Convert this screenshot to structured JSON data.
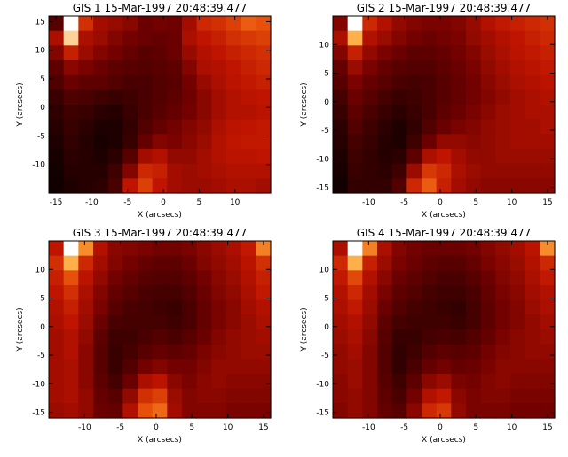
{
  "chart_data": [
    {
      "type": "heatmap",
      "title": "GIS 1 15-Mar-1997 20:48:39.477",
      "xlabel": "X (arcsecs)",
      "ylabel": "Y (arcsecs)",
      "xlim": [
        -16,
        15
      ],
      "ylim": [
        -15,
        16
      ],
      "xticks": [
        -15,
        -10,
        -5,
        0,
        5,
        10
      ],
      "yticks": [
        -10,
        -5,
        0,
        5,
        10,
        15
      ],
      "colormap": "red-temperature",
      "values": [
        [
          0.28,
          1.0,
          0.62,
          0.48,
          0.45,
          0.42,
          0.34,
          0.36,
          0.35,
          0.48,
          0.6,
          0.62,
          0.66,
          0.72,
          0.7
        ],
        [
          0.5,
          0.92,
          0.5,
          0.46,
          0.4,
          0.36,
          0.34,
          0.32,
          0.34,
          0.5,
          0.55,
          0.58,
          0.62,
          0.64,
          0.66
        ],
        [
          0.4,
          0.58,
          0.46,
          0.4,
          0.36,
          0.32,
          0.28,
          0.3,
          0.34,
          0.45,
          0.52,
          0.55,
          0.58,
          0.6,
          0.62
        ],
        [
          0.3,
          0.42,
          0.38,
          0.34,
          0.3,
          0.28,
          0.26,
          0.28,
          0.3,
          0.4,
          0.5,
          0.52,
          0.55,
          0.58,
          0.6
        ],
        [
          0.25,
          0.34,
          0.3,
          0.3,
          0.26,
          0.24,
          0.24,
          0.26,
          0.28,
          0.36,
          0.45,
          0.5,
          0.54,
          0.56,
          0.58
        ],
        [
          0.18,
          0.25,
          0.24,
          0.2,
          0.18,
          0.2,
          0.24,
          0.26,
          0.3,
          0.35,
          0.42,
          0.48,
          0.52,
          0.54,
          0.55
        ],
        [
          0.15,
          0.2,
          0.18,
          0.14,
          0.12,
          0.18,
          0.24,
          0.28,
          0.32,
          0.36,
          0.42,
          0.48,
          0.52,
          0.52,
          0.54
        ],
        [
          0.12,
          0.18,
          0.14,
          0.1,
          0.1,
          0.16,
          0.26,
          0.32,
          0.36,
          0.4,
          0.44,
          0.5,
          0.54,
          0.55,
          0.56
        ],
        [
          0.1,
          0.16,
          0.12,
          0.08,
          0.1,
          0.18,
          0.32,
          0.4,
          0.38,
          0.42,
          0.46,
          0.52,
          0.55,
          0.56,
          0.56
        ],
        [
          0.08,
          0.14,
          0.12,
          0.1,
          0.14,
          0.28,
          0.48,
          0.52,
          0.44,
          0.44,
          0.48,
          0.52,
          0.54,
          0.54,
          0.55
        ],
        [
          0.06,
          0.12,
          0.12,
          0.12,
          0.2,
          0.4,
          0.6,
          0.58,
          0.48,
          0.46,
          0.48,
          0.5,
          0.52,
          0.52,
          0.52
        ],
        [
          0.05,
          0.1,
          0.12,
          0.14,
          0.24,
          0.55,
          0.66,
          0.55,
          0.48,
          0.46,
          0.46,
          0.48,
          0.5,
          0.5,
          0.48
        ]
      ]
    },
    {
      "type": "heatmap",
      "title": "GIS 2 15-Mar-1997 20:48:39.477",
      "xlabel": "X (arcsecs)",
      "ylabel": "Y (arcsecs)",
      "xlim": [
        -15,
        16
      ],
      "ylim": [
        -16,
        15
      ],
      "xticks": [
        -10,
        -5,
        0,
        5,
        10,
        15
      ],
      "yticks": [
        -15,
        -10,
        -5,
        0,
        5,
        10
      ],
      "colormap": "red-temperature",
      "values": [
        [
          0.4,
          1.0,
          0.6,
          0.52,
          0.44,
          0.4,
          0.38,
          0.38,
          0.4,
          0.45,
          0.52,
          0.56,
          0.58,
          0.6,
          0.62
        ],
        [
          0.5,
          0.86,
          0.52,
          0.46,
          0.4,
          0.36,
          0.34,
          0.36,
          0.38,
          0.44,
          0.48,
          0.52,
          0.55,
          0.58,
          0.6
        ],
        [
          0.4,
          0.58,
          0.44,
          0.38,
          0.34,
          0.3,
          0.3,
          0.32,
          0.36,
          0.4,
          0.46,
          0.5,
          0.54,
          0.56,
          0.58
        ],
        [
          0.32,
          0.46,
          0.38,
          0.32,
          0.28,
          0.26,
          0.26,
          0.3,
          0.34,
          0.38,
          0.44,
          0.48,
          0.52,
          0.54,
          0.56
        ],
        [
          0.28,
          0.38,
          0.32,
          0.28,
          0.24,
          0.22,
          0.24,
          0.28,
          0.32,
          0.36,
          0.42,
          0.46,
          0.5,
          0.52,
          0.54
        ],
        [
          0.22,
          0.34,
          0.28,
          0.22,
          0.18,
          0.2,
          0.24,
          0.28,
          0.32,
          0.36,
          0.4,
          0.44,
          0.48,
          0.5,
          0.52
        ],
        [
          0.18,
          0.3,
          0.24,
          0.18,
          0.14,
          0.18,
          0.24,
          0.3,
          0.34,
          0.38,
          0.42,
          0.46,
          0.48,
          0.5,
          0.5
        ],
        [
          0.14,
          0.26,
          0.2,
          0.14,
          0.1,
          0.16,
          0.26,
          0.34,
          0.38,
          0.4,
          0.44,
          0.46,
          0.48,
          0.48,
          0.5
        ],
        [
          0.12,
          0.22,
          0.18,
          0.12,
          0.1,
          0.2,
          0.34,
          0.44,
          0.44,
          0.42,
          0.44,
          0.46,
          0.48,
          0.48,
          0.48
        ],
        [
          0.1,
          0.2,
          0.16,
          0.12,
          0.14,
          0.3,
          0.5,
          0.55,
          0.48,
          0.44,
          0.44,
          0.46,
          0.46,
          0.46,
          0.46
        ],
        [
          0.08,
          0.18,
          0.16,
          0.14,
          0.2,
          0.46,
          0.64,
          0.6,
          0.5,
          0.46,
          0.44,
          0.44,
          0.44,
          0.44,
          0.44
        ],
        [
          0.06,
          0.16,
          0.16,
          0.16,
          0.26,
          0.6,
          0.72,
          0.58,
          0.48,
          0.44,
          0.42,
          0.42,
          0.42,
          0.42,
          0.42
        ]
      ]
    },
    {
      "type": "heatmap",
      "title": "GIS 3 15-Mar-1997 20:48:39.477",
      "xlabel": "X (arcsecs)",
      "ylabel": "Y (arcsecs)",
      "xlim": [
        -15,
        16
      ],
      "ylim": [
        -16,
        15
      ],
      "xticks": [
        -10,
        -5,
        0,
        5,
        10,
        15
      ],
      "yticks": [
        -15,
        -10,
        -5,
        0,
        5,
        10
      ],
      "colormap": "red-temperature",
      "values": [
        [
          0.55,
          1.0,
          0.8,
          0.52,
          0.42,
          0.4,
          0.38,
          0.36,
          0.36,
          0.38,
          0.42,
          0.46,
          0.5,
          0.56,
          0.78
        ],
        [
          0.62,
          0.86,
          0.6,
          0.48,
          0.4,
          0.36,
          0.32,
          0.3,
          0.3,
          0.34,
          0.4,
          0.44,
          0.48,
          0.54,
          0.62
        ],
        [
          0.58,
          0.7,
          0.54,
          0.44,
          0.36,
          0.32,
          0.28,
          0.26,
          0.26,
          0.3,
          0.36,
          0.42,
          0.46,
          0.52,
          0.58
        ],
        [
          0.55,
          0.62,
          0.5,
          0.4,
          0.32,
          0.28,
          0.24,
          0.22,
          0.22,
          0.26,
          0.34,
          0.4,
          0.44,
          0.5,
          0.56
        ],
        [
          0.52,
          0.58,
          0.48,
          0.38,
          0.28,
          0.24,
          0.22,
          0.2,
          0.18,
          0.24,
          0.32,
          0.38,
          0.42,
          0.48,
          0.52
        ],
        [
          0.5,
          0.55,
          0.46,
          0.34,
          0.24,
          0.22,
          0.22,
          0.22,
          0.2,
          0.24,
          0.32,
          0.38,
          0.42,
          0.46,
          0.5
        ],
        [
          0.48,
          0.52,
          0.44,
          0.3,
          0.2,
          0.2,
          0.24,
          0.26,
          0.24,
          0.28,
          0.34,
          0.4,
          0.44,
          0.46,
          0.48
        ],
        [
          0.48,
          0.52,
          0.42,
          0.28,
          0.18,
          0.22,
          0.28,
          0.32,
          0.3,
          0.32,
          0.38,
          0.42,
          0.44,
          0.46,
          0.46
        ],
        [
          0.48,
          0.5,
          0.42,
          0.28,
          0.18,
          0.26,
          0.36,
          0.4,
          0.36,
          0.36,
          0.4,
          0.44,
          0.44,
          0.44,
          0.44
        ],
        [
          0.48,
          0.5,
          0.42,
          0.3,
          0.22,
          0.34,
          0.5,
          0.54,
          0.42,
          0.38,
          0.42,
          0.44,
          0.42,
          0.42,
          0.42
        ],
        [
          0.48,
          0.5,
          0.44,
          0.32,
          0.28,
          0.44,
          0.62,
          0.66,
          0.46,
          0.4,
          0.42,
          0.42,
          0.4,
          0.4,
          0.4
        ],
        [
          0.46,
          0.48,
          0.44,
          0.34,
          0.32,
          0.52,
          0.7,
          0.74,
          0.48,
          0.4,
          0.4,
          0.4,
          0.38,
          0.38,
          0.38
        ]
      ]
    },
    {
      "type": "heatmap",
      "title": "GIS 4 15-Mar-1997 20:48:39.477",
      "xlabel": "X (arcsecs)",
      "ylabel": "Y (arcsecs)",
      "xlim": [
        -15,
        16
      ],
      "ylim": [
        -16,
        15
      ],
      "xticks": [
        -10,
        -5,
        0,
        5,
        10,
        15
      ],
      "yticks": [
        -15,
        -10,
        -5,
        0,
        5,
        10
      ],
      "colormap": "red-temperature",
      "values": [
        [
          0.5,
          1.0,
          0.78,
          0.5,
          0.4,
          0.36,
          0.34,
          0.34,
          0.34,
          0.36,
          0.4,
          0.44,
          0.48,
          0.54,
          0.8
        ],
        [
          0.6,
          0.86,
          0.58,
          0.46,
          0.38,
          0.34,
          0.3,
          0.28,
          0.28,
          0.32,
          0.38,
          0.42,
          0.46,
          0.52,
          0.6
        ],
        [
          0.56,
          0.68,
          0.52,
          0.42,
          0.34,
          0.3,
          0.26,
          0.24,
          0.24,
          0.28,
          0.34,
          0.4,
          0.44,
          0.5,
          0.56
        ],
        [
          0.52,
          0.6,
          0.48,
          0.38,
          0.3,
          0.26,
          0.22,
          0.2,
          0.2,
          0.24,
          0.32,
          0.38,
          0.42,
          0.48,
          0.52
        ],
        [
          0.5,
          0.56,
          0.46,
          0.34,
          0.26,
          0.22,
          0.2,
          0.18,
          0.16,
          0.22,
          0.3,
          0.36,
          0.4,
          0.46,
          0.5
        ],
        [
          0.48,
          0.52,
          0.44,
          0.3,
          0.22,
          0.2,
          0.2,
          0.2,
          0.18,
          0.22,
          0.3,
          0.36,
          0.4,
          0.44,
          0.48
        ],
        [
          0.46,
          0.5,
          0.42,
          0.28,
          0.18,
          0.18,
          0.22,
          0.24,
          0.22,
          0.26,
          0.32,
          0.38,
          0.42,
          0.44,
          0.46
        ],
        [
          0.44,
          0.48,
          0.4,
          0.26,
          0.16,
          0.2,
          0.26,
          0.3,
          0.28,
          0.3,
          0.36,
          0.4,
          0.42,
          0.44,
          0.44
        ],
        [
          0.44,
          0.46,
          0.4,
          0.26,
          0.16,
          0.24,
          0.32,
          0.36,
          0.32,
          0.34,
          0.38,
          0.42,
          0.42,
          0.42,
          0.42
        ],
        [
          0.42,
          0.46,
          0.4,
          0.28,
          0.2,
          0.3,
          0.42,
          0.46,
          0.38,
          0.36,
          0.4,
          0.42,
          0.4,
          0.4,
          0.4
        ],
        [
          0.42,
          0.44,
          0.4,
          0.3,
          0.24,
          0.36,
          0.52,
          0.56,
          0.42,
          0.38,
          0.4,
          0.4,
          0.38,
          0.38,
          0.38
        ],
        [
          0.4,
          0.44,
          0.4,
          0.32,
          0.28,
          0.42,
          0.6,
          0.64,
          0.44,
          0.38,
          0.38,
          0.38,
          0.36,
          0.36,
          0.36
        ]
      ]
    }
  ]
}
